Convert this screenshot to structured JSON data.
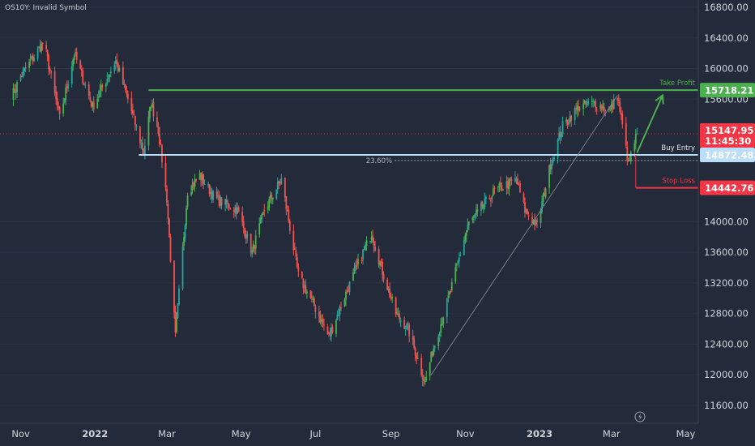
{
  "symbol_label": "OS10Y: Invalid Symbol",
  "colors": {
    "background": "#232a3a",
    "up": "#26a69a",
    "up_alt": "#4caf50",
    "down": "#ef5350",
    "take_profit": "#4caf50",
    "buy_entry": "#bbdefb",
    "stop_loss": "#f23645",
    "trendline": "#8a8f99",
    "axis_text": "#d1d4dc"
  },
  "chart_data": {
    "type": "candlestick",
    "y_ticks": [
      "16800.00",
      "16400.00",
      "16000.00",
      "15600.00",
      "14000.00",
      "13600.00",
      "13200.00",
      "12800.00",
      "12400.00",
      "12000.00",
      "11600.00"
    ],
    "x_ticks": [
      "Nov",
      "2022",
      "Mar",
      "May",
      "Jul",
      "Sep",
      "Nov",
      "2023",
      "Mar",
      "May"
    ],
    "ylim": [
      11400,
      17050
    ],
    "levels": {
      "take_profit": {
        "label": "Take Profit",
        "value": "15718.21",
        "price": 15718.21
      },
      "buy_entry": {
        "label": "Buy Entry",
        "value": "14872.48",
        "price": 14872.48
      },
      "stop_loss": {
        "label": "Stop Loss",
        "value": "14442.76",
        "price": 14442.76
      },
      "fib": {
        "label": "23.60%",
        "price": 14800
      }
    },
    "last_price": {
      "value": "15147.95",
      "countdown": "11:45:30",
      "price": 15147.95
    },
    "anchors": [
      [
        "2021-10-25",
        15650
      ],
      [
        "2021-11-01",
        15900
      ],
      [
        "2021-11-20",
        16350
      ],
      [
        "2021-12-03",
        15350
      ],
      [
        "2021-12-15",
        16200
      ],
      [
        "2021-12-30",
        15500
      ],
      [
        "2022-01-18",
        16100
      ],
      [
        "2022-01-28",
        15600
      ],
      [
        "2022-02-10",
        14900
      ],
      [
        "2022-02-16",
        15550
      ],
      [
        "2022-02-22",
        15200
      ],
      [
        "2022-03-01",
        14300
      ],
      [
        "2022-03-08",
        12500
      ],
      [
        "2022-03-18",
        14400
      ],
      [
        "2022-03-28",
        14600
      ],
      [
        "2022-04-10",
        14300
      ],
      [
        "2022-04-28",
        14150
      ],
      [
        "2022-05-10",
        13600
      ],
      [
        "2022-05-20",
        14150
      ],
      [
        "2022-06-03",
        14550
      ],
      [
        "2022-06-17",
        13300
      ],
      [
        "2022-06-30",
        12900
      ],
      [
        "2022-07-12",
        12500
      ],
      [
        "2022-07-22",
        12900
      ],
      [
        "2022-08-01",
        13300
      ],
      [
        "2022-08-16",
        13850
      ],
      [
        "2022-08-24",
        13400
      ],
      [
        "2022-09-05",
        12800
      ],
      [
        "2022-09-15",
        12600
      ],
      [
        "2022-09-29",
        11900
      ],
      [
        "2022-10-05",
        12300
      ],
      [
        "2022-10-20",
        13100
      ],
      [
        "2022-11-03",
        13950
      ],
      [
        "2022-11-25",
        14400
      ],
      [
        "2022-12-13",
        14550
      ],
      [
        "2022-12-20",
        14150
      ],
      [
        "2022-12-30",
        13950
      ],
      [
        "2023-01-10",
        14750
      ],
      [
        "2023-01-20",
        15250
      ],
      [
        "2023-02-02",
        15500
      ],
      [
        "2023-02-15",
        15550
      ],
      [
        "2023-02-28",
        15450
      ],
      [
        "2023-03-06",
        15650
      ],
      [
        "2023-03-15",
        14750
      ],
      [
        "2023-03-22",
        15147.95
      ]
    ]
  }
}
